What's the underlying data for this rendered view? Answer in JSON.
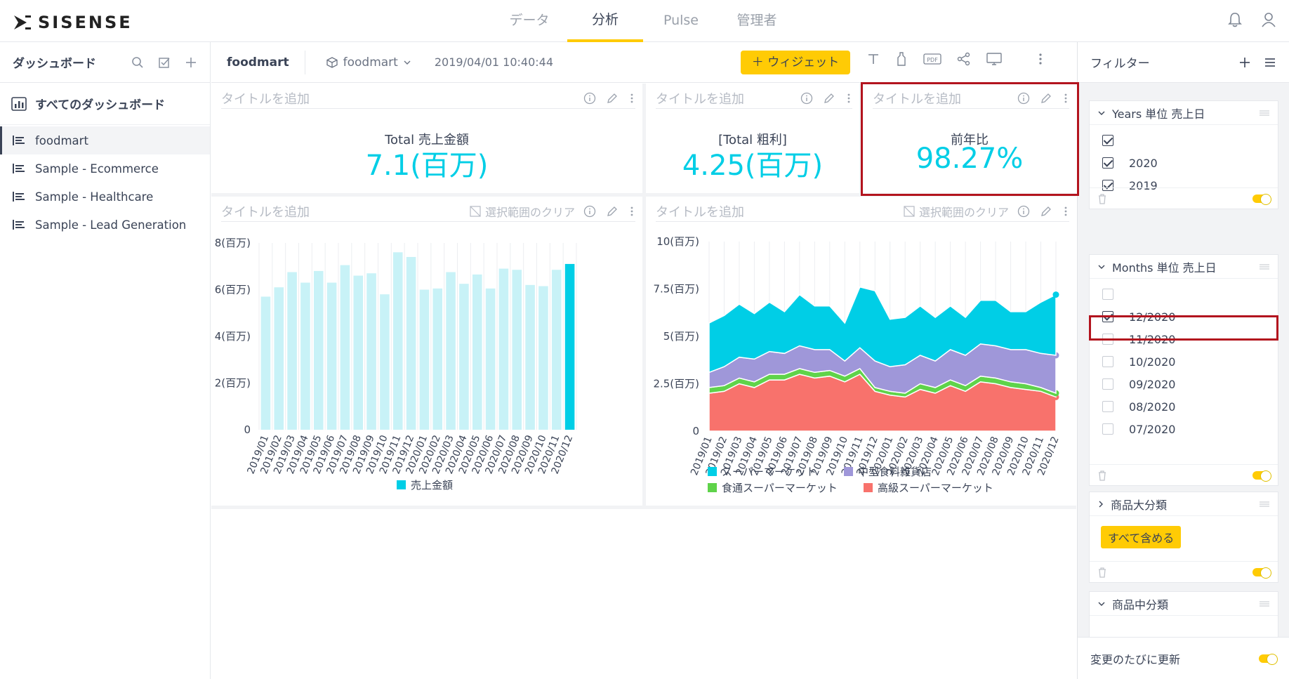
{
  "app": {
    "logo_text": "SISENSE"
  },
  "nav": {
    "tabs": [
      {
        "label": "データ"
      },
      {
        "label": "分析"
      },
      {
        "label": "Pulse"
      },
      {
        "label": "管理者"
      }
    ]
  },
  "sidebar": {
    "title": "ダッシュボード",
    "all_label": "すべてのダッシュボード",
    "items": [
      {
        "label": "foodmart"
      },
      {
        "label": "Sample - Ecommerce"
      },
      {
        "label": "Sample - Healthcare"
      },
      {
        "label": "Sample - Lead Generation"
      }
    ]
  },
  "header": {
    "dashboard_name": "foodmart",
    "datasource": "foodmart",
    "timestamp": "2019/04/01 10:40:44",
    "add_widget": "＋ ウィジェット",
    "pdf_label": "PDF"
  },
  "widgets": {
    "placeholder_title": "タイトルを追加",
    "clear_selection": "選択範囲のクリア",
    "kpi1": {
      "label": "Total 売上金額",
      "value": "7.1(百万)"
    },
    "kpi2": {
      "label": "[Total 粗利]",
      "value": "4.25(百万)"
    },
    "kpi3": {
      "label": "前年比",
      "value": "98.27%"
    }
  },
  "filters": {
    "title": "フィルター",
    "years": {
      "title": "Years 単位 売上日",
      "items": [
        {
          "label": "2020",
          "checked": true
        },
        {
          "label": "2019",
          "checked": true
        }
      ]
    },
    "months": {
      "title": "Months 単位 売上日",
      "items": [
        {
          "label": "12/2020",
          "checked": true
        },
        {
          "label": "11/2020",
          "checked": false
        },
        {
          "label": "10/2020",
          "checked": false
        },
        {
          "label": "09/2020",
          "checked": false
        },
        {
          "label": "08/2020",
          "checked": false
        },
        {
          "label": "07/2020",
          "checked": false
        }
      ]
    },
    "cat_large": {
      "title": "商品大分類",
      "include_all": "すべて含める"
    },
    "cat_mid": {
      "title": "商品中分類"
    },
    "update_each": "変更のたびに更新"
  },
  "colors": {
    "accent": "#ffcb05",
    "kpi": "#00cee6",
    "highlight": "#b3141e"
  },
  "chart_data": [
    {
      "type": "bar",
      "categories": [
        "2019/01",
        "2019/02",
        "2019/03",
        "2019/04",
        "2019/05",
        "2019/06",
        "2019/07",
        "2019/08",
        "2019/09",
        "2019/10",
        "2019/11",
        "2019/12",
        "2020/01",
        "2020/02",
        "2020/03",
        "2020/04",
        "2020/05",
        "2020/06",
        "2020/07",
        "2020/08",
        "2020/09",
        "2020/10",
        "2020/11",
        "2020/12"
      ],
      "series": [
        {
          "name": "売上金額",
          "values": [
            5.7,
            6.1,
            6.75,
            6.3,
            6.8,
            6.3,
            7.05,
            6.6,
            6.7,
            5.8,
            7.6,
            7.4,
            6.0,
            6.05,
            6.75,
            6.25,
            6.65,
            6.05,
            6.9,
            6.85,
            6.2,
            6.15,
            6.85,
            7.1
          ]
        }
      ],
      "highlight_index": 23,
      "colors": {
        "normal": "#c8f2f7",
        "highlight": "#00cee6"
      },
      "yticks": [
        "0",
        "2(百万)",
        "4(百万)",
        "6(百万)",
        "8(百万)"
      ],
      "ylim": [
        0,
        8
      ],
      "legend": "bottom"
    },
    {
      "type": "area",
      "categories": [
        "2019/01",
        "2019/02",
        "2019/03",
        "2019/04",
        "2019/05",
        "2019/06",
        "2019/07",
        "2019/08",
        "2019/09",
        "2019/10",
        "2019/11",
        "2019/12",
        "2020/01",
        "2020/02",
        "2020/03",
        "2020/04",
        "2020/05",
        "2020/06",
        "2020/07",
        "2020/08",
        "2020/09",
        "2020/10",
        "2020/11",
        "2020/12"
      ],
      "stacked": true,
      "series": [
        {
          "name": "高級スーパーマーケット",
          "color": "#f8726c",
          "values": [
            2.0,
            2.1,
            2.5,
            2.3,
            2.7,
            2.7,
            3.0,
            2.8,
            2.9,
            2.6,
            3.0,
            2.1,
            1.9,
            1.8,
            2.2,
            2.0,
            2.4,
            2.1,
            2.6,
            2.5,
            2.3,
            2.2,
            2.1,
            1.8
          ]
        },
        {
          "name": "食通スーパーマーケット",
          "color": "#5fd34a",
          "values": [
            0.3,
            0.3,
            0.3,
            0.3,
            0.3,
            0.3,
            0.3,
            0.3,
            0.3,
            0.3,
            0.3,
            0.2,
            0.2,
            0.2,
            0.3,
            0.3,
            0.3,
            0.3,
            0.3,
            0.3,
            0.3,
            0.3,
            0.2,
            0.2
          ]
        },
        {
          "name": "中型食料雑貨店",
          "color": "#9f97d9",
          "values": [
            0.8,
            1.0,
            1.1,
            1.2,
            1.2,
            1.1,
            1.2,
            1.2,
            1.1,
            0.8,
            1.1,
            1.4,
            1.3,
            1.5,
            1.5,
            1.4,
            1.6,
            1.6,
            1.7,
            1.7,
            1.7,
            1.8,
            1.8,
            2.0
          ]
        },
        {
          "name": "スーパーマーケット",
          "color": "#00cee6",
          "values": [
            2.6,
            2.7,
            2.8,
            2.4,
            2.6,
            2.2,
            2.7,
            2.3,
            2.3,
            2.0,
            3.2,
            3.7,
            2.5,
            2.5,
            2.6,
            2.3,
            2.3,
            2.0,
            2.3,
            2.4,
            2.0,
            2.0,
            2.7,
            3.2
          ]
        }
      ],
      "yticks": [
        "0",
        "2.5(百万)",
        "5(百万)",
        "7.5(百万)",
        "10(百万)"
      ],
      "ylim": [
        0,
        10
      ],
      "legend": "bottom"
    }
  ]
}
